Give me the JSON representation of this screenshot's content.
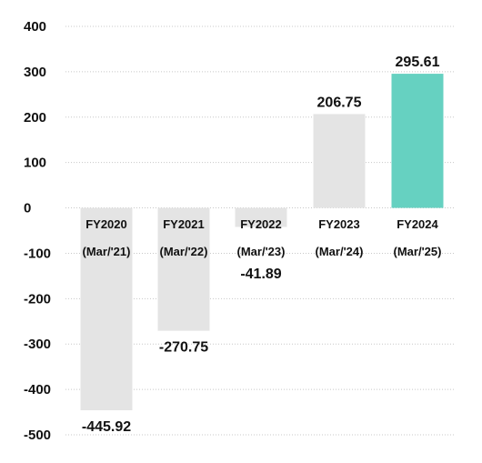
{
  "chart_data": {
    "type": "bar",
    "categories": [
      {
        "line1": "FY2020",
        "line2": "(Mar/'21)"
      },
      {
        "line1": "FY2021",
        "line2": "(Mar/'22)"
      },
      {
        "line1": "FY2022",
        "line2": "(Mar/'23)"
      },
      {
        "line1": "FY2023",
        "line2": "(Mar/'24)"
      },
      {
        "line1": "FY2024",
        "line2": "(Mar/'25)"
      }
    ],
    "values": [
      -445.92,
      -270.75,
      -41.89,
      206.75,
      295.61
    ],
    "value_labels": [
      "-445.92",
      "-270.75",
      "-41.89",
      "206.75",
      "295.61"
    ],
    "bar_colors": [
      "#e4e4e4",
      "#e4e4e4",
      "#e4e4e4",
      "#e4e4e4",
      "#66d1c1"
    ],
    "ylim": [
      -500,
      400
    ],
    "yticks": [
      400,
      300,
      200,
      100,
      0,
      -100,
      -200,
      -300,
      -400,
      -500
    ],
    "grid": true,
    "grid_color": "#c8c8c8",
    "title": "",
    "xlabel": "",
    "ylabel": ""
  }
}
